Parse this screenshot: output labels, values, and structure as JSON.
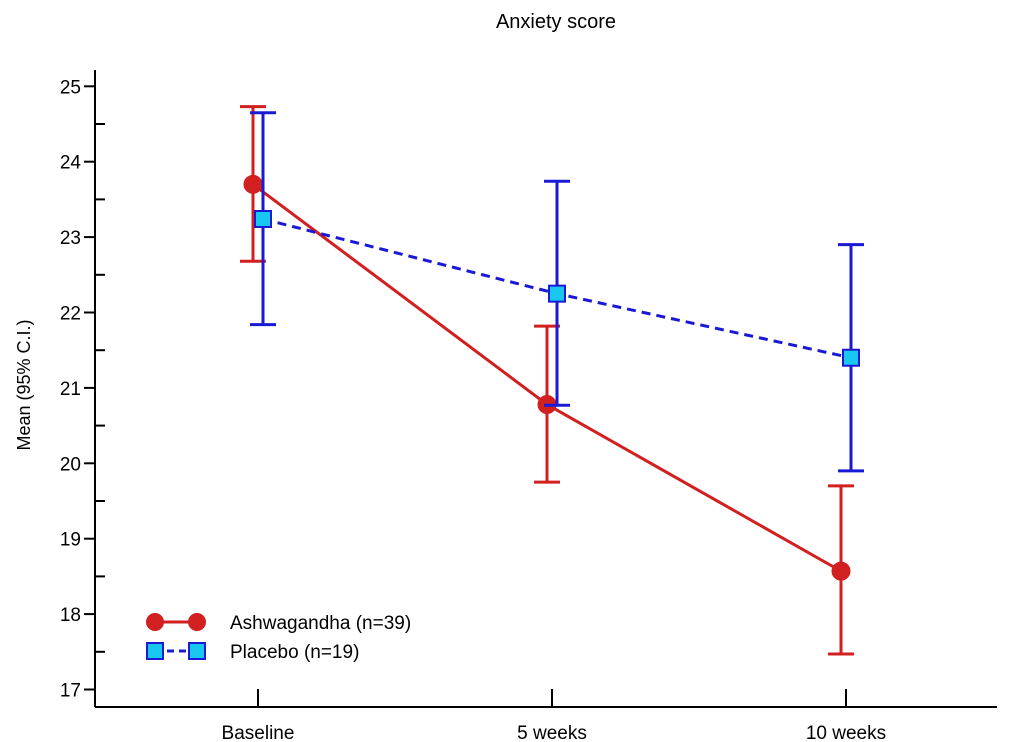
{
  "chart_data": {
    "type": "line",
    "title": "Anxiety score",
    "xlabel": "",
    "ylabel": "Mean (95% C.I.)",
    "categories": [
      "Baseline",
      "5 weeks",
      "10 weeks"
    ],
    "ylim": [
      16.8,
      25.2
    ],
    "yticks": [
      17,
      18,
      19,
      20,
      21,
      22,
      23,
      24,
      25
    ],
    "grid": false,
    "legend_position": "bottom-left",
    "series": [
      {
        "name": "Ashwagandha (n=39)",
        "values": [
          23.7,
          20.78,
          18.57
        ],
        "ci_low": [
          22.68,
          19.75,
          17.47
        ],
        "ci_high": [
          24.73,
          21.82,
          19.7
        ],
        "color": "#d21f1f",
        "marker": "circle",
        "line_style": "solid"
      },
      {
        "name": "Placebo (n=19)",
        "values": [
          23.24,
          22.25,
          21.4
        ],
        "ci_low": [
          21.84,
          20.77,
          19.9
        ],
        "ci_high": [
          24.65,
          23.74,
          22.9
        ],
        "color": "#1a1ad6",
        "marker_fill": "#19c8f0",
        "marker": "square",
        "line_style": "dashed"
      }
    ]
  }
}
